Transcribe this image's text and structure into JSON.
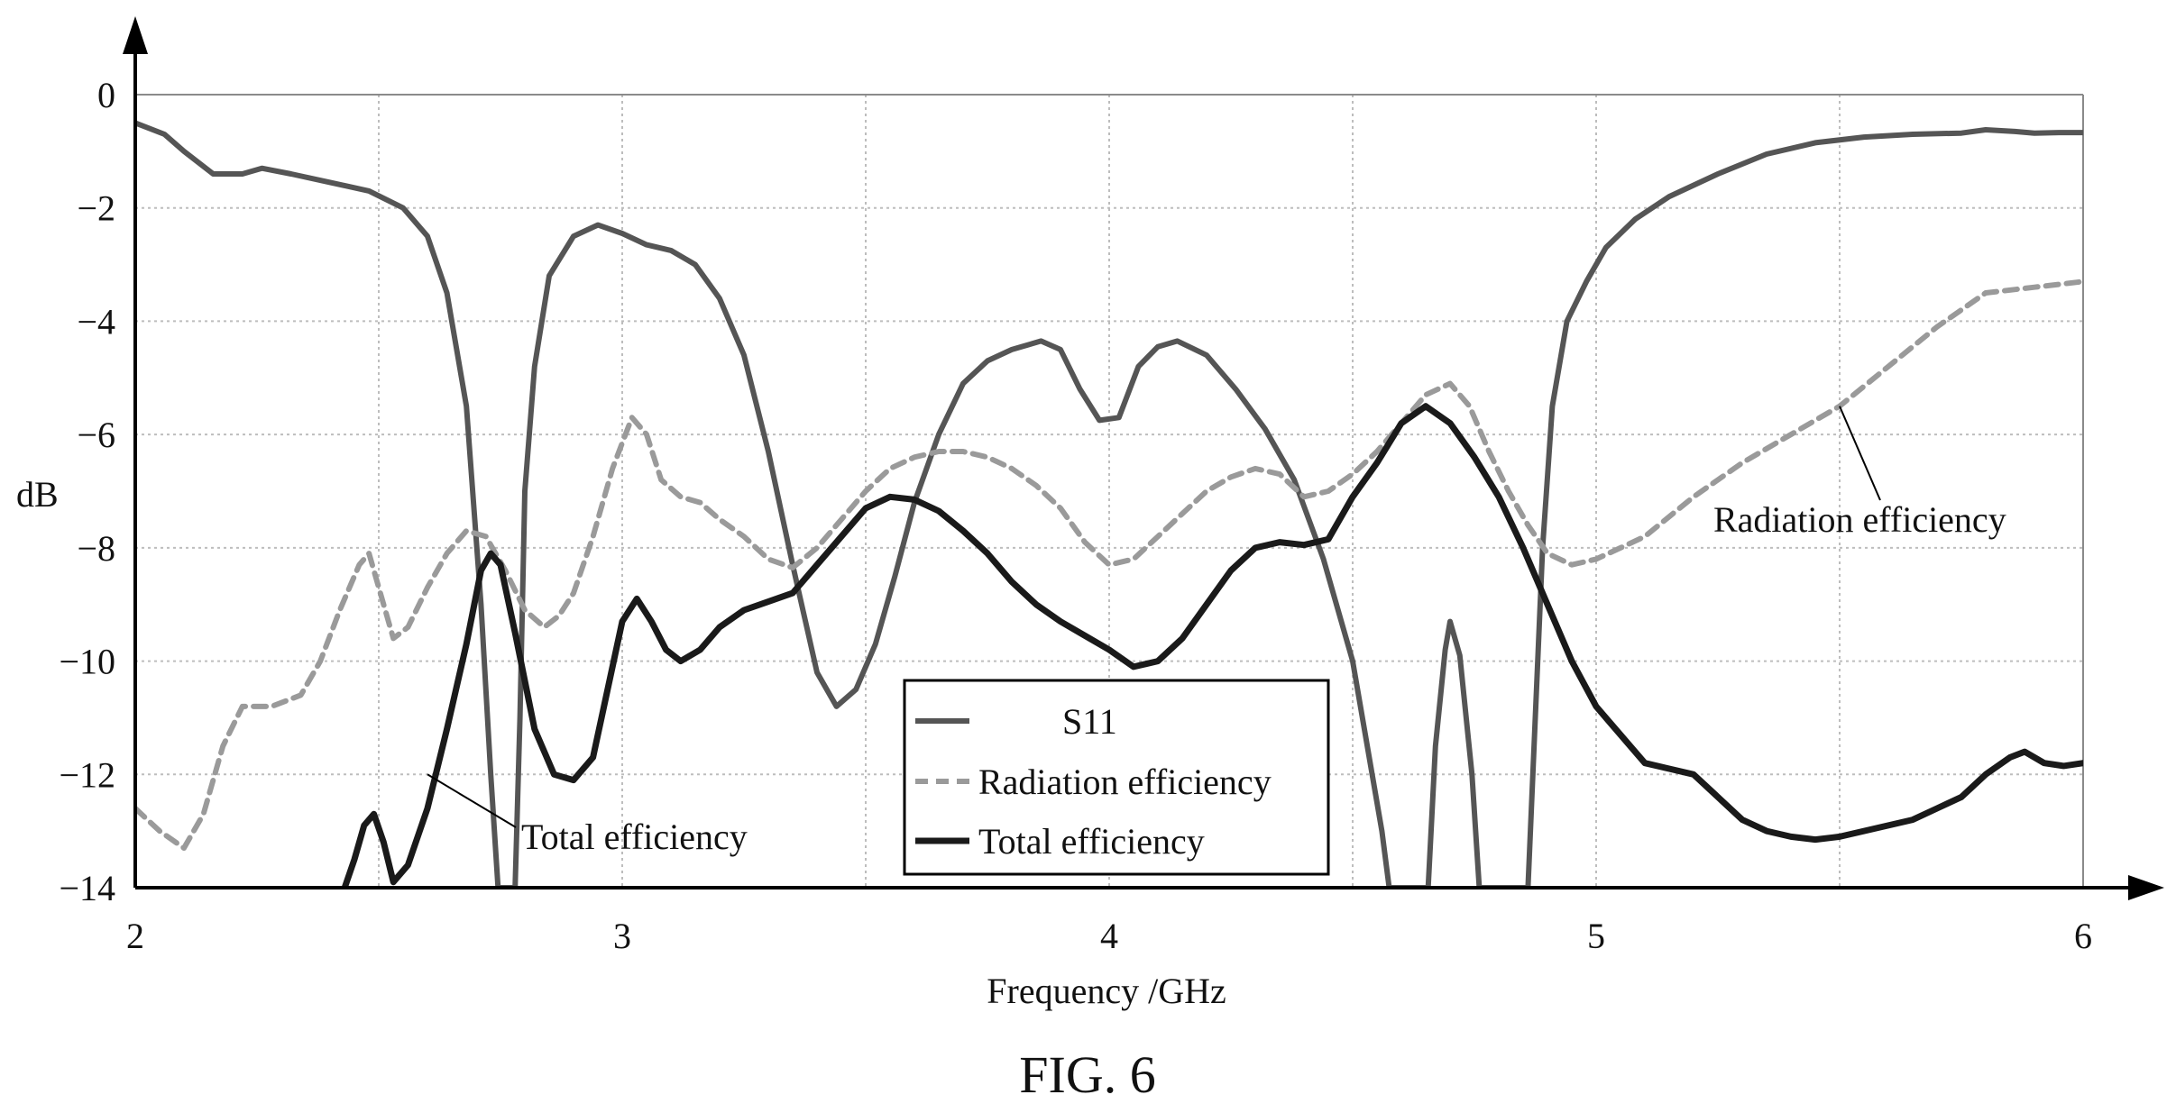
{
  "chart_data": {
    "type": "line",
    "title": "",
    "xlabel": "Frequency /GHz",
    "ylabel": "dB",
    "xlim": [
      2,
      6
    ],
    "ylim": [
      -14,
      0
    ],
    "x_ticks": [
      2,
      3,
      4,
      5,
      6
    ],
    "y_ticks": [
      0,
      -2,
      -4,
      -6,
      -8,
      -10,
      -12,
      -14
    ],
    "y_tick_labels": [
      "0",
      "−2",
      "−4",
      "−6",
      "−8",
      "−10",
      "−12",
      "−14"
    ],
    "grid": true,
    "legend_position": "bottom-center",
    "series": [
      {
        "name": "S11",
        "style": "solid",
        "color": "#555555",
        "points": [
          [
            2.0,
            -0.5
          ],
          [
            2.06,
            -0.7
          ],
          [
            2.1,
            -1.0
          ],
          [
            2.16,
            -1.4
          ],
          [
            2.22,
            -1.4
          ],
          [
            2.26,
            -1.3
          ],
          [
            2.32,
            -1.4
          ],
          [
            2.4,
            -1.55
          ],
          [
            2.48,
            -1.7
          ],
          [
            2.55,
            -2.0
          ],
          [
            2.6,
            -2.5
          ],
          [
            2.64,
            -3.5
          ],
          [
            2.68,
            -5.5
          ],
          [
            2.71,
            -9.0
          ],
          [
            2.73,
            -12.0
          ],
          [
            2.745,
            -14.0
          ],
          [
            2.78,
            -14.0
          ],
          [
            2.79,
            -11.0
          ],
          [
            2.8,
            -7.0
          ],
          [
            2.82,
            -4.8
          ],
          [
            2.85,
            -3.2
          ],
          [
            2.9,
            -2.5
          ],
          [
            2.95,
            -2.3
          ],
          [
            3.0,
            -2.45
          ],
          [
            3.05,
            -2.65
          ],
          [
            3.1,
            -2.75
          ],
          [
            3.15,
            -3.0
          ],
          [
            3.2,
            -3.6
          ],
          [
            3.25,
            -4.6
          ],
          [
            3.3,
            -6.3
          ],
          [
            3.35,
            -8.3
          ],
          [
            3.4,
            -10.2
          ],
          [
            3.44,
            -10.8
          ],
          [
            3.48,
            -10.5
          ],
          [
            3.52,
            -9.7
          ],
          [
            3.56,
            -8.5
          ],
          [
            3.6,
            -7.2
          ],
          [
            3.65,
            -6.0
          ],
          [
            3.7,
            -5.1
          ],
          [
            3.75,
            -4.7
          ],
          [
            3.8,
            -4.5
          ],
          [
            3.86,
            -4.35
          ],
          [
            3.9,
            -4.5
          ],
          [
            3.94,
            -5.2
          ],
          [
            3.98,
            -5.75
          ],
          [
            4.02,
            -5.7
          ],
          [
            4.06,
            -4.8
          ],
          [
            4.1,
            -4.45
          ],
          [
            4.14,
            -4.35
          ],
          [
            4.2,
            -4.6
          ],
          [
            4.26,
            -5.2
          ],
          [
            4.32,
            -5.9
          ],
          [
            4.38,
            -6.8
          ],
          [
            4.44,
            -8.2
          ],
          [
            4.5,
            -10.0
          ],
          [
            4.53,
            -11.5
          ],
          [
            4.56,
            -13.0
          ],
          [
            4.575,
            -14.0
          ],
          [
            4.655,
            -14.0
          ],
          [
            4.67,
            -11.5
          ],
          [
            4.69,
            -9.8
          ],
          [
            4.7,
            -9.3
          ],
          [
            4.72,
            -9.9
          ],
          [
            4.745,
            -12.0
          ],
          [
            4.76,
            -14.0
          ],
          [
            4.86,
            -14.0
          ],
          [
            4.875,
            -11.0
          ],
          [
            4.89,
            -8.0
          ],
          [
            4.91,
            -5.5
          ],
          [
            4.94,
            -4.0
          ],
          [
            4.98,
            -3.3
          ],
          [
            5.02,
            -2.7
          ],
          [
            5.08,
            -2.2
          ],
          [
            5.15,
            -1.8
          ],
          [
            5.25,
            -1.4
          ],
          [
            5.35,
            -1.05
          ],
          [
            5.45,
            -0.85
          ],
          [
            5.55,
            -0.75
          ],
          [
            5.65,
            -0.7
          ],
          [
            5.75,
            -0.68
          ],
          [
            5.8,
            -0.62
          ],
          [
            5.86,
            -0.65
          ],
          [
            5.9,
            -0.68
          ],
          [
            5.95,
            -0.67
          ],
          [
            6.0,
            -0.67
          ]
        ]
      },
      {
        "name": "Radiation efficiency",
        "style": "dashed",
        "color": "#9a9a9a",
        "points": [
          [
            2.0,
            -12.6
          ],
          [
            2.05,
            -13.0
          ],
          [
            2.1,
            -13.3
          ],
          [
            2.14,
            -12.7
          ],
          [
            2.18,
            -11.5
          ],
          [
            2.22,
            -10.8
          ],
          [
            2.28,
            -10.8
          ],
          [
            2.34,
            -10.6
          ],
          [
            2.38,
            -10.0
          ],
          [
            2.42,
            -9.1
          ],
          [
            2.46,
            -8.3
          ],
          [
            2.48,
            -8.1
          ],
          [
            2.5,
            -8.7
          ],
          [
            2.53,
            -9.6
          ],
          [
            2.56,
            -9.4
          ],
          [
            2.6,
            -8.7
          ],
          [
            2.64,
            -8.1
          ],
          [
            2.68,
            -7.7
          ],
          [
            2.72,
            -7.8
          ],
          [
            2.76,
            -8.4
          ],
          [
            2.8,
            -9.1
          ],
          [
            2.84,
            -9.4
          ],
          [
            2.87,
            -9.2
          ],
          [
            2.9,
            -8.8
          ],
          [
            2.94,
            -7.8
          ],
          [
            2.98,
            -6.6
          ],
          [
            3.02,
            -5.7
          ],
          [
            3.05,
            -6.0
          ],
          [
            3.08,
            -6.8
          ],
          [
            3.12,
            -7.1
          ],
          [
            3.16,
            -7.2
          ],
          [
            3.2,
            -7.5
          ],
          [
            3.25,
            -7.8
          ],
          [
            3.3,
            -8.2
          ],
          [
            3.35,
            -8.35
          ],
          [
            3.4,
            -8.0
          ],
          [
            3.45,
            -7.5
          ],
          [
            3.5,
            -7.0
          ],
          [
            3.55,
            -6.6
          ],
          [
            3.6,
            -6.4
          ],
          [
            3.65,
            -6.3
          ],
          [
            3.7,
            -6.3
          ],
          [
            3.75,
            -6.4
          ],
          [
            3.8,
            -6.6
          ],
          [
            3.85,
            -6.9
          ],
          [
            3.9,
            -7.3
          ],
          [
            3.95,
            -7.9
          ],
          [
            4.0,
            -8.3
          ],
          [
            4.05,
            -8.2
          ],
          [
            4.1,
            -7.8
          ],
          [
            4.15,
            -7.4
          ],
          [
            4.2,
            -7.0
          ],
          [
            4.25,
            -6.75
          ],
          [
            4.3,
            -6.6
          ],
          [
            4.35,
            -6.7
          ],
          [
            4.4,
            -7.1
          ],
          [
            4.45,
            -7.0
          ],
          [
            4.5,
            -6.7
          ],
          [
            4.55,
            -6.3
          ],
          [
            4.6,
            -5.8
          ],
          [
            4.65,
            -5.3
          ],
          [
            4.7,
            -5.1
          ],
          [
            4.74,
            -5.5
          ],
          [
            4.78,
            -6.3
          ],
          [
            4.82,
            -7.0
          ],
          [
            4.86,
            -7.6
          ],
          [
            4.9,
            -8.1
          ],
          [
            4.95,
            -8.3
          ],
          [
            5.0,
            -8.2
          ],
          [
            5.05,
            -8.0
          ],
          [
            5.1,
            -7.8
          ],
          [
            5.2,
            -7.1
          ],
          [
            5.3,
            -6.5
          ],
          [
            5.4,
            -6.0
          ],
          [
            5.5,
            -5.5
          ],
          [
            5.6,
            -4.8
          ],
          [
            5.7,
            -4.1
          ],
          [
            5.8,
            -3.5
          ],
          [
            5.9,
            -3.4
          ],
          [
            6.0,
            -3.3
          ]
        ]
      },
      {
        "name": "Total efficiency",
        "style": "solid-thick",
        "color": "#1a1a1a",
        "points": [
          [
            2.43,
            -14.0
          ],
          [
            2.45,
            -13.5
          ],
          [
            2.47,
            -12.9
          ],
          [
            2.49,
            -12.7
          ],
          [
            2.51,
            -13.2
          ],
          [
            2.53,
            -13.9
          ],
          [
            2.56,
            -13.6
          ],
          [
            2.6,
            -12.6
          ],
          [
            2.64,
            -11.2
          ],
          [
            2.68,
            -9.7
          ],
          [
            2.71,
            -8.4
          ],
          [
            2.73,
            -8.1
          ],
          [
            2.75,
            -8.3
          ],
          [
            2.78,
            -9.5
          ],
          [
            2.82,
            -11.2
          ],
          [
            2.86,
            -12.0
          ],
          [
            2.9,
            -12.1
          ],
          [
            2.94,
            -11.7
          ],
          [
            2.97,
            -10.5
          ],
          [
            3.0,
            -9.3
          ],
          [
            3.03,
            -8.9
          ],
          [
            3.06,
            -9.3
          ],
          [
            3.09,
            -9.8
          ],
          [
            3.12,
            -10.0
          ],
          [
            3.16,
            -9.8
          ],
          [
            3.2,
            -9.4
          ],
          [
            3.25,
            -9.1
          ],
          [
            3.3,
            -8.95
          ],
          [
            3.35,
            -8.8
          ],
          [
            3.4,
            -8.3
          ],
          [
            3.45,
            -7.8
          ],
          [
            3.5,
            -7.3
          ],
          [
            3.55,
            -7.1
          ],
          [
            3.6,
            -7.15
          ],
          [
            3.65,
            -7.35
          ],
          [
            3.7,
            -7.7
          ],
          [
            3.75,
            -8.1
          ],
          [
            3.8,
            -8.6
          ],
          [
            3.85,
            -9.0
          ],
          [
            3.9,
            -9.3
          ],
          [
            3.95,
            -9.55
          ],
          [
            4.0,
            -9.8
          ],
          [
            4.05,
            -10.1
          ],
          [
            4.1,
            -10.0
          ],
          [
            4.15,
            -9.6
          ],
          [
            4.2,
            -9.0
          ],
          [
            4.25,
            -8.4
          ],
          [
            4.3,
            -8.0
          ],
          [
            4.35,
            -7.9
          ],
          [
            4.4,
            -7.95
          ],
          [
            4.45,
            -7.85
          ],
          [
            4.5,
            -7.1
          ],
          [
            4.55,
            -6.5
          ],
          [
            4.6,
            -5.8
          ],
          [
            4.65,
            -5.5
          ],
          [
            4.7,
            -5.8
          ],
          [
            4.75,
            -6.4
          ],
          [
            4.8,
            -7.1
          ],
          [
            4.85,
            -8.0
          ],
          [
            4.9,
            -9.0
          ],
          [
            4.95,
            -10.0
          ],
          [
            5.0,
            -10.8
          ],
          [
            5.05,
            -11.3
          ],
          [
            5.1,
            -11.8
          ],
          [
            5.15,
            -11.9
          ],
          [
            5.2,
            -12.0
          ],
          [
            5.25,
            -12.4
          ],
          [
            5.3,
            -12.8
          ],
          [
            5.35,
            -13.0
          ],
          [
            5.4,
            -13.1
          ],
          [
            5.45,
            -13.15
          ],
          [
            5.5,
            -13.1
          ],
          [
            5.55,
            -13.0
          ],
          [
            5.6,
            -12.9
          ],
          [
            5.65,
            -12.8
          ],
          [
            5.7,
            -12.6
          ],
          [
            5.75,
            -12.4
          ],
          [
            5.8,
            -12.0
          ],
          [
            5.85,
            -11.7
          ],
          [
            5.88,
            -11.6
          ],
          [
            5.92,
            -11.8
          ],
          [
            5.96,
            -11.85
          ],
          [
            6.0,
            -11.8
          ]
        ]
      }
    ],
    "annotations": [
      {
        "text": "Radiation efficiency",
        "target": [
          5.5,
          -5.5
        ]
      },
      {
        "text": "Total efficiency",
        "target": [
          2.6,
          -12.0
        ]
      }
    ]
  },
  "figure_caption": "FIG. 6"
}
